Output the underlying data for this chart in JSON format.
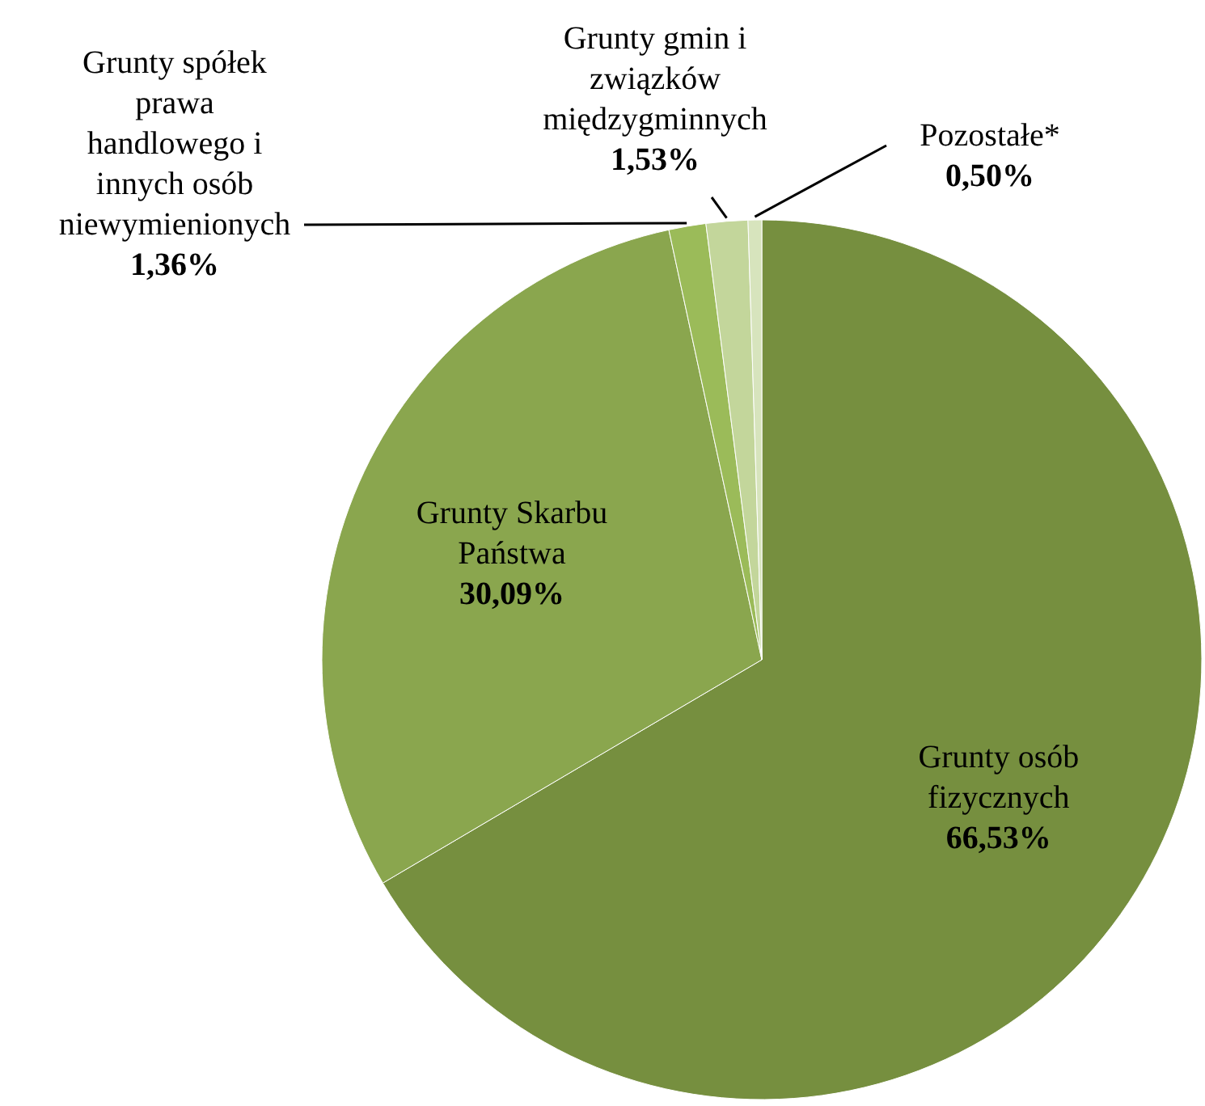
{
  "chart_data": {
    "type": "pie",
    "categories": [
      "Grunty osób fizycznych",
      "Grunty Skarbu Państwa",
      "Grunty spółek prawa handlowego i innych osób niewymienionych",
      "Grunty gmin i związków międzygminnych",
      "Pozostałe*"
    ],
    "values": [
      66.53,
      30.09,
      1.36,
      1.53,
      0.5
    ],
    "value_labels": [
      "66,53%",
      "30,09%",
      "1,36%",
      "1,53%",
      "0,50%"
    ],
    "colors": [
      "#768f3f",
      "#8aa64e",
      "#9bbb59",
      "#c3d69b",
      "#d7e4bd"
    ]
  }
}
